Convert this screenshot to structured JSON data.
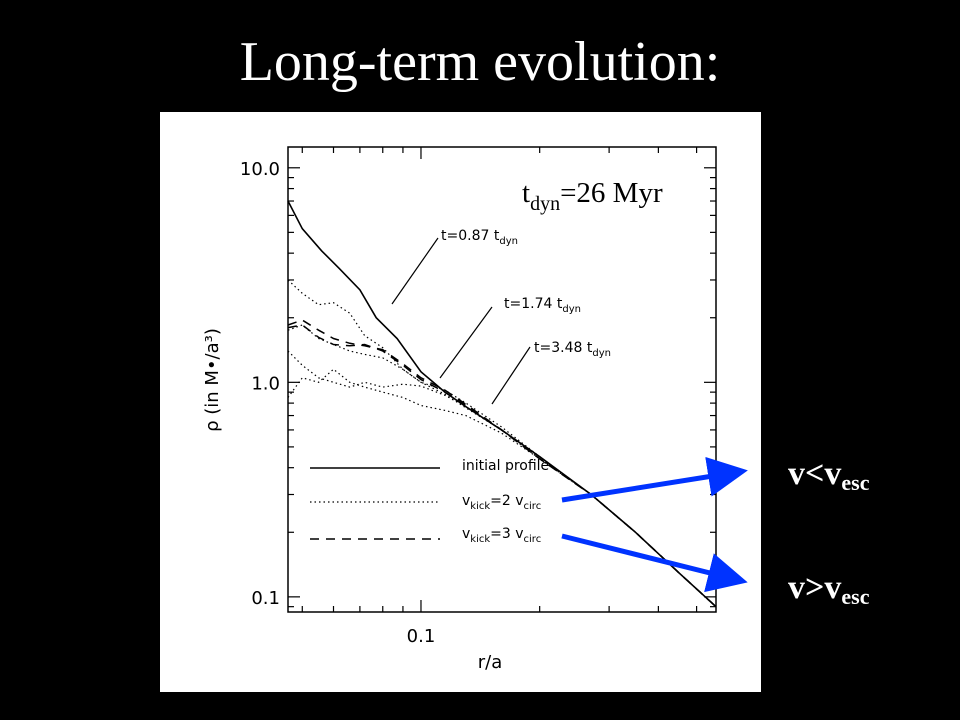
{
  "slide": {
    "title": "Long-term evolution:",
    "arrow_color": "#0033ff",
    "labels": [
      {
        "main": "v<v",
        "sub": "esc"
      },
      {
        "main": "v>v",
        "sub": "esc"
      }
    ]
  },
  "chart_data": {
    "type": "line",
    "xscale": "log",
    "yscale": "log",
    "xlabel": "r/a",
    "ylabel": "ρ (in M•/a³)",
    "xlim": [
      0.046,
      0.56
    ],
    "ylim": [
      0.085,
      12.5
    ],
    "xticks": [
      {
        "value": 0.1,
        "label": "0.1"
      }
    ],
    "yticks": [
      {
        "value": 0.1,
        "label": "0.1"
      },
      {
        "value": 1.0,
        "label": "1.0"
      },
      {
        "value": 10.0,
        "label": "10.0"
      }
    ],
    "annotation_main": "t",
    "annotation_sub": "dyn",
    "annotation_rest": "=26 Myr",
    "time_labels": [
      {
        "text": "t=0.87 t",
        "sub": "dyn"
      },
      {
        "text": "t=1.74 t",
        "sub": "dyn"
      },
      {
        "text": "t=3.48 t",
        "sub": "dyn"
      }
    ],
    "legend_position": "bottom-left",
    "legend": [
      {
        "label": "initial profile",
        "sub": "",
        "suffix": "",
        "style": "solid"
      },
      {
        "label": "v",
        "sub": "kick",
        "suffix": "=2 v",
        "sub2": "circ",
        "style": "dotted"
      },
      {
        "label": "v",
        "sub": "kick",
        "suffix": "=3 v",
        "sub2": "circ",
        "style": "dashed"
      }
    ],
    "series": [
      {
        "style": "solid",
        "x": [
          0.046,
          0.05,
          0.056,
          0.062,
          0.07,
          0.077,
          0.087,
          0.1,
          0.115,
          0.13,
          0.16,
          0.2,
          0.27,
          0.35,
          0.45,
          0.56
        ],
        "y": [
          7.0,
          5.2,
          4.1,
          3.4,
          2.7,
          2.0,
          1.6,
          1.12,
          0.9,
          0.77,
          0.6,
          0.45,
          0.3,
          0.2,
          0.13,
          0.09
        ]
      },
      {
        "style": "dotted",
        "x": [
          0.046,
          0.05,
          0.055,
          0.06,
          0.066,
          0.072,
          0.08,
          0.09,
          0.1,
          0.115,
          0.13,
          0.16,
          0.2,
          0.27,
          0.35,
          0.45,
          0.56
        ],
        "y": [
          3.0,
          2.6,
          2.3,
          2.35,
          2.1,
          1.65,
          1.45,
          1.15,
          1.0,
          0.92,
          0.8,
          0.62,
          0.45,
          0.3,
          0.2,
          0.13,
          0.09
        ]
      },
      {
        "style": "dotted",
        "x": [
          0.046,
          0.05,
          0.055,
          0.06,
          0.066,
          0.072,
          0.08,
          0.09,
          0.1,
          0.115,
          0.13,
          0.16,
          0.2,
          0.27,
          0.35,
          0.45,
          0.56
        ],
        "y": [
          1.75,
          1.85,
          1.6,
          1.5,
          1.4,
          1.35,
          1.3,
          1.15,
          1.0,
          0.88,
          0.76,
          0.6,
          0.44,
          0.3,
          0.2,
          0.13,
          0.09
        ]
      },
      {
        "style": "dotted",
        "x": [
          0.046,
          0.05,
          0.055,
          0.06,
          0.066,
          0.072,
          0.08,
          0.09,
          0.1,
          0.115,
          0.13,
          0.16,
          0.2,
          0.27,
          0.35,
          0.45,
          0.56
        ],
        "y": [
          1.4,
          1.2,
          1.05,
          1.0,
          0.95,
          1.0,
          0.95,
          0.98,
          0.96,
          0.87,
          0.77,
          0.6,
          0.44,
          0.3,
          0.2,
          0.13,
          0.09
        ]
      },
      {
        "style": "dotted",
        "x": [
          0.046,
          0.05,
          0.055,
          0.06,
          0.066,
          0.072,
          0.08,
          0.09,
          0.1,
          0.115,
          0.13,
          0.16,
          0.2,
          0.27,
          0.35,
          0.45,
          0.56
        ],
        "y": [
          0.85,
          1.05,
          1.0,
          1.15,
          1.0,
          0.95,
          0.9,
          0.85,
          0.78,
          0.74,
          0.7,
          0.58,
          0.44,
          0.3,
          0.2,
          0.13,
          0.09
        ]
      },
      {
        "style": "dashed",
        "x": [
          0.046,
          0.05,
          0.055,
          0.06,
          0.066,
          0.072,
          0.08,
          0.09,
          0.1,
          0.115,
          0.13,
          0.16,
          0.2,
          0.27,
          0.35,
          0.45,
          0.56
        ],
        "y": [
          1.85,
          1.95,
          1.75,
          1.6,
          1.52,
          1.48,
          1.42,
          1.22,
          1.05,
          0.92,
          0.79,
          0.6,
          0.44,
          0.3,
          0.2,
          0.13,
          0.09
        ]
      },
      {
        "style": "dashed",
        "x": [
          0.046,
          0.05,
          0.055,
          0.06,
          0.066,
          0.072,
          0.08,
          0.09,
          0.1,
          0.115,
          0.13,
          0.16,
          0.2,
          0.27,
          0.35,
          0.45,
          0.56
        ],
        "y": [
          1.8,
          1.85,
          1.62,
          1.5,
          1.48,
          1.5,
          1.4,
          1.2,
          1.03,
          0.9,
          0.78,
          0.6,
          0.44,
          0.3,
          0.2,
          0.13,
          0.09
        ]
      }
    ]
  }
}
